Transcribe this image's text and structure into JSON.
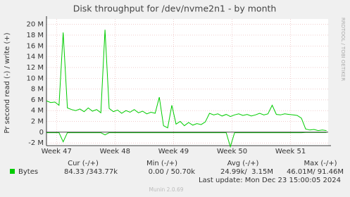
{
  "chart_data": {
    "type": "line",
    "title": "Disk throughput for /dev/nvme2n1 - by month",
    "y_label": "Pr second read (-) / write (+)",
    "side_text": "RRDTOOL / TOBI OETIKER",
    "ylim": [
      -2.5,
      21
    ],
    "yticks": [
      {
        "value": -2,
        "label": "-2 M"
      },
      0,
      {
        "value": 2,
        "label": "2 M"
      },
      {
        "value": 4,
        "label": "4 M"
      },
      {
        "value": 6,
        "label": "6 M"
      },
      {
        "value": 8,
        "label": "8 M"
      },
      {
        "value": 10,
        "label": "10 M"
      },
      {
        "value": 12,
        "label": "12 M"
      },
      {
        "value": 14,
        "label": "14 M"
      },
      {
        "value": 16,
        "label": "16 M"
      },
      {
        "value": 18,
        "label": "18 M"
      },
      {
        "value": 20,
        "label": "20 M"
      }
    ],
    "xlim": [
      0,
      33.7
    ],
    "xticks": [
      {
        "value": 1.2,
        "label": "Week 47"
      },
      {
        "value": 8.2,
        "label": "Week 48"
      },
      {
        "value": 15.2,
        "label": "Week 49"
      },
      {
        "value": 22.2,
        "label": "Week 50"
      },
      {
        "value": 29.2,
        "label": "Week 51"
      }
    ],
    "grid": true,
    "x": [
      0,
      0.5,
      1,
      1.5,
      2,
      2.5,
      3,
      3.5,
      4,
      4.5,
      5,
      5.5,
      6,
      6.5,
      7,
      7.5,
      8,
      8.5,
      9,
      9.5,
      10,
      10.5,
      11,
      11.5,
      12,
      12.5,
      13,
      13.5,
      14,
      14.5,
      15,
      15.5,
      16,
      16.5,
      17,
      17.5,
      18,
      18.5,
      19,
      19.5,
      20,
      20.5,
      21,
      21.5,
      22,
      22.5,
      23,
      23.5,
      24,
      24.5,
      25,
      25.5,
      26,
      26.5,
      27,
      27.5,
      28,
      28.5,
      29,
      29.5,
      30,
      30.5,
      31,
      31.5,
      32,
      32.5,
      33,
      33.5
    ],
    "series": [
      {
        "name": "Bytes",
        "color": "#00cc00",
        "values": [
          5.8,
          5.5,
          5.6,
          5.0,
          18.5,
          4.5,
          4.2,
          4.0,
          4.3,
          3.8,
          4.5,
          3.9,
          4.2,
          3.6,
          19.0,
          4.4,
          3.8,
          4.1,
          3.5,
          4.0,
          3.7,
          4.2,
          3.6,
          3.9,
          3.4,
          3.7,
          3.5,
          6.5,
          1.2,
          0.8,
          5.0,
          1.5,
          2.0,
          1.2,
          1.8,
          1.3,
          1.6,
          1.4,
          1.9,
          3.5,
          3.2,
          3.4,
          3.0,
          3.3,
          2.9,
          3.2,
          3.4,
          3.1,
          3.3,
          3.0,
          3.2,
          3.5,
          3.2,
          3.4,
          5.0,
          3.3,
          3.2,
          3.4,
          3.3,
          3.2,
          3.1,
          2.6,
          0.6,
          0.4,
          0.5,
          0.3,
          0.4,
          0.3
        ],
        "read_values": [
          -0.1,
          -0.1,
          -0.1,
          -0.1,
          -1.8,
          -0.1,
          -0.1,
          -0.1,
          -0.1,
          -0.1,
          -0.1,
          -0.1,
          -0.1,
          -0.1,
          -0.5,
          -0.1,
          -0.1,
          -0.1,
          -0.1,
          -0.1,
          -0.1,
          -0.1,
          -0.1,
          -0.1,
          -0.1,
          -0.1,
          -0.1,
          -0.1,
          -0.1,
          -0.1,
          -0.1,
          -0.1,
          -0.1,
          -0.1,
          -0.1,
          -0.1,
          -0.1,
          -0.1,
          -0.1,
          -0.1,
          -0.1,
          -0.1,
          -0.1,
          -0.1,
          -2.7,
          -0.1,
          -0.1,
          -0.1,
          -0.1,
          -0.1,
          -0.1,
          -0.1,
          -0.1,
          -0.1,
          -0.1,
          -0.1,
          -0.1,
          -0.1,
          -0.1,
          -0.1,
          -0.1,
          -0.1,
          -0.05,
          -0.05,
          -0.05,
          -0.05,
          -0.05,
          -0.05
        ]
      }
    ],
    "summary": {
      "headers": [
        "Cur (-/+)",
        "Min (-/+)",
        "Avg (-/+)",
        "Max (-/+)"
      ],
      "row": [
        "84.33 /343.77k",
        "0.00 / 50.70k",
        "24.99k/  3.15M",
        "46.01M/ 91.46M"
      ]
    },
    "last_update": "Last update: Mon Dec 23 15:00:05 2024",
    "footer": "Munin 2.0.69"
  }
}
